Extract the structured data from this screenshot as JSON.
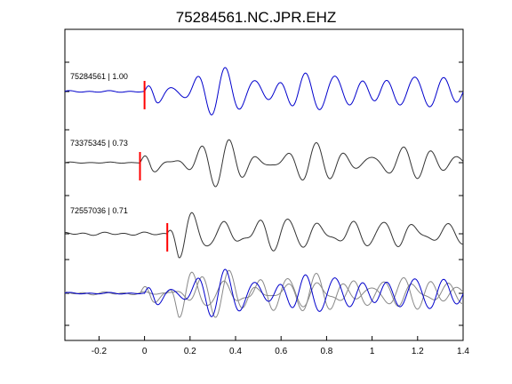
{
  "chart_data": {
    "type": "line",
    "title": "75284561.NC.JPR.EHZ",
    "xlabel": "",
    "ylabel": "",
    "xlim": [
      -0.35,
      1.4
    ],
    "x_ticks": [
      -0.2,
      0,
      0.2,
      0.4,
      0.6,
      0.8,
      1,
      1.2,
      1.4
    ],
    "x_tick_labels": [
      "-0.2",
      "0",
      "0.2",
      "0.4",
      "0.6",
      "0.8",
      "1",
      "1.2",
      "1.4"
    ],
    "grid": false,
    "colors": {
      "reference": "#0000cc",
      "other": "#333333",
      "overlay_other": "#888888",
      "pick": "#ff0000",
      "axes": "#000000"
    },
    "traces": [
      {
        "label": "75284561 | 1.00",
        "pick_time": 0.0,
        "color": "#0000cc",
        "pre_noise": 0.06,
        "components": [
          {
            "amp": 1.0,
            "freq": 8.4,
            "phase": 1.6,
            "decay": 0.25
          },
          {
            "amp": 0.55,
            "freq": 6.1,
            "phase": 0.4,
            "decay": 0.6
          },
          {
            "amp": 0.3,
            "freq": 11.3,
            "phase": 2.3,
            "decay": 1.0
          }
        ]
      },
      {
        "label": "73375345 | 0.73",
        "pick_time": -0.02,
        "color": "#333333",
        "pre_noise": 0.04,
        "components": [
          {
            "amp": 0.9,
            "freq": 7.9,
            "phase": 0.9,
            "decay": 0.3
          },
          {
            "amp": 0.55,
            "freq": 10.2,
            "phase": 2.0,
            "decay": 0.7
          },
          {
            "amp": 0.35,
            "freq": 5.4,
            "phase": 0.2,
            "decay": 0.5
          }
        ]
      },
      {
        "label": "72557036 | 0.71",
        "pick_time": 0.1,
        "color": "#333333",
        "pre_noise": 0.12,
        "components": [
          {
            "amp": 0.95,
            "freq": 7.2,
            "phase": 2.6,
            "decay": 0.35
          },
          {
            "amp": 0.5,
            "freq": 9.6,
            "phase": 1.1,
            "decay": 0.8
          },
          {
            "amp": 0.3,
            "freq": 12.4,
            "phase": 0.5,
            "decay": 1.1
          }
        ]
      }
    ],
    "overlay": {
      "show": true,
      "reference_trace": 0,
      "overlaid_traces": [
        1,
        2
      ]
    }
  }
}
